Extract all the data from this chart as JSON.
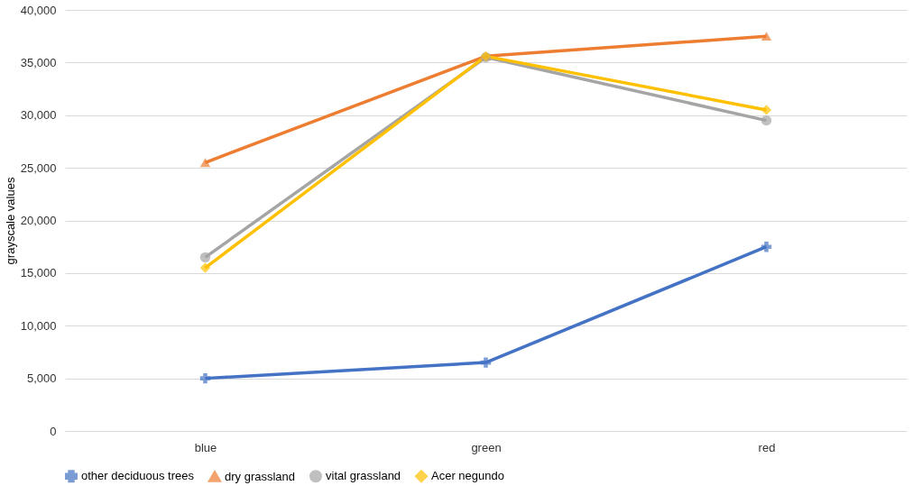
{
  "chart_data": {
    "type": "line",
    "ylabel": "grayscale values",
    "categories": [
      "blue",
      "green",
      "red"
    ],
    "series": [
      {
        "name": "other deciduous trees",
        "color": "#4472c4",
        "marker": "cross",
        "values": [
          5000,
          6500,
          17500
        ]
      },
      {
        "name": "dry grassland",
        "color": "#ed7d31",
        "marker": "triangle",
        "values": [
          25500,
          35600,
          37500
        ]
      },
      {
        "name": "vital grassland",
        "color": "#a5a5a5",
        "marker": "circle",
        "values": [
          16500,
          35500,
          29500
        ]
      },
      {
        "name": "Acer negundo",
        "color": "#ffc000",
        "marker": "diamond",
        "values": [
          15500,
          35600,
          30500
        ]
      }
    ],
    "ylim": [
      0,
      40000
    ],
    "yticks": [
      {
        "value": 0,
        "label": "0"
      },
      {
        "value": 5000,
        "label": "5,000"
      },
      {
        "value": 10000,
        "label": "10,000"
      },
      {
        "value": 15000,
        "label": "15,000"
      },
      {
        "value": 20000,
        "label": "20,000"
      },
      {
        "value": 25000,
        "label": "25,000"
      },
      {
        "value": 30000,
        "label": "30,000"
      },
      {
        "value": 35000,
        "label": "35,000"
      },
      {
        "value": 40000,
        "label": "40,000"
      }
    ],
    "grid": "y",
    "legend": "bottom",
    "line_style": "solid"
  }
}
